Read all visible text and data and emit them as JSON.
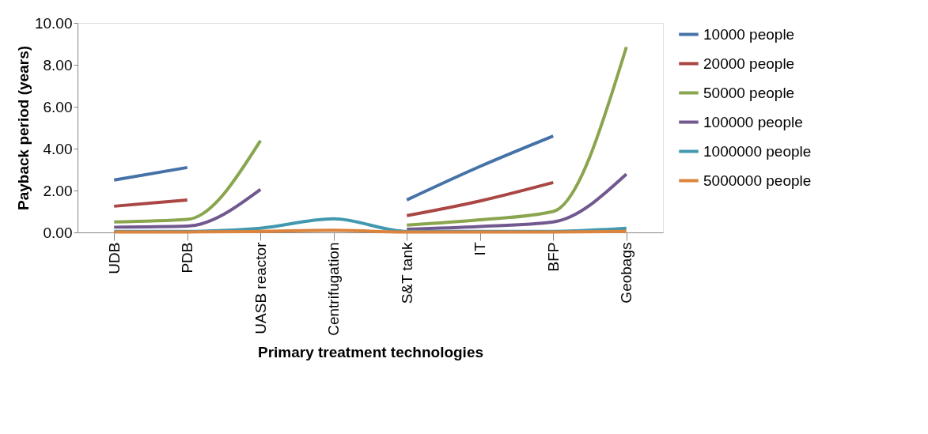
{
  "chart_data": {
    "type": "line",
    "xlabel": "Primary treatment technologies",
    "ylabel": "Payback period (years)",
    "categories": [
      "UDB",
      "PDB",
      "UASB reactor",
      "Centrifugation",
      "S&T tank",
      "IT",
      "BFP",
      "Geobags"
    ],
    "ylim": [
      0,
      10
    ],
    "yticks": [
      {
        "value": 0,
        "label": "0.00"
      },
      {
        "value": 2,
        "label": "2.00"
      },
      {
        "value": 4,
        "label": "4.00"
      },
      {
        "value": 6,
        "label": "6.00"
      },
      {
        "value": 8,
        "label": "8.00"
      },
      {
        "value": 10,
        "label": "10.00"
      }
    ],
    "grid": false,
    "legend": "right",
    "line_style": "solid",
    "marker": "none",
    "series": [
      {
        "name": "10000 people",
        "color": "#4572a7",
        "values": [
          2.5,
          3.1,
          null,
          null,
          1.55,
          3.15,
          4.6,
          null
        ]
      },
      {
        "name": "20000 people",
        "color": "#aa4643",
        "values": [
          1.25,
          1.55,
          null,
          null,
          0.8,
          1.5,
          2.38,
          null
        ]
      },
      {
        "name": "50000 people",
        "color": "#89a54e",
        "values": [
          0.5,
          0.62,
          4.38,
          null,
          0.35,
          0.6,
          1.0,
          8.85
        ]
      },
      {
        "name": "100000 people",
        "color": "#71588f",
        "values": [
          0.25,
          0.3,
          2.05,
          null,
          0.15,
          0.28,
          0.5,
          2.78
        ]
      },
      {
        "name": "1000000 people",
        "color": "#4198af",
        "values": [
          0.05,
          0.05,
          0.2,
          0.65,
          0.05,
          0.05,
          0.05,
          0.2
        ]
      },
      {
        "name": "5000000 people",
        "color": "#db843d",
        "values": [
          0.02,
          0.02,
          0.05,
          0.1,
          0.02,
          0.02,
          0.02,
          0.05
        ]
      }
    ]
  }
}
